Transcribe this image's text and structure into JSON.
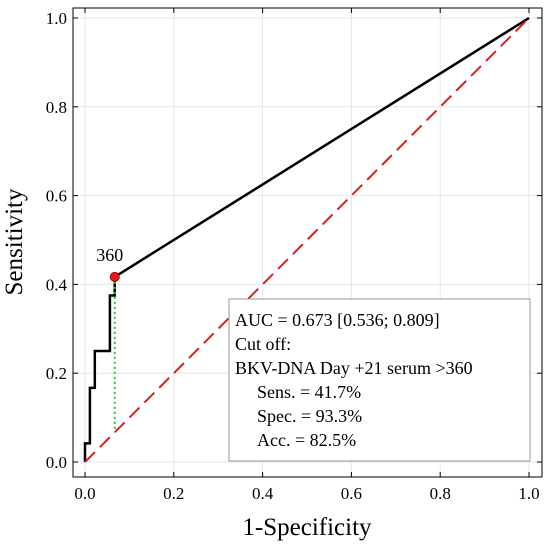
{
  "chart_data": {
    "type": "line",
    "title": "",
    "xlabel": "1-Specificity",
    "ylabel": "Sensitivity",
    "xlim": [
      0.0,
      1.0
    ],
    "ylim": [
      0.0,
      1.0
    ],
    "xticks": [
      0.0,
      0.2,
      0.4,
      0.6,
      0.8,
      1.0
    ],
    "yticks": [
      0.0,
      0.2,
      0.4,
      0.6,
      0.8,
      1.0
    ],
    "xtick_labels": [
      "0.0",
      "0.2",
      "0.4",
      "0.6",
      "0.8",
      "1.0"
    ],
    "ytick_labels": [
      "0.0",
      "0.2",
      "0.4",
      "0.6",
      "0.8",
      "1.0"
    ],
    "grid": true,
    "series": [
      {
        "type": "roc-step",
        "color": "#000000",
        "points": [
          [
            0.0,
            0.0
          ],
          [
            0.0,
            0.042
          ],
          [
            0.011,
            0.042
          ],
          [
            0.011,
            0.167
          ],
          [
            0.022,
            0.167
          ],
          [
            0.022,
            0.25
          ],
          [
            0.056,
            0.25
          ],
          [
            0.056,
            0.375
          ],
          [
            0.067,
            0.375
          ],
          [
            0.067,
            0.417
          ],
          [
            1.0,
            1.0
          ]
        ]
      },
      {
        "type": "reference-diagonal",
        "color": "#e31a1c",
        "points": [
          [
            0.0,
            0.0
          ],
          [
            1.0,
            1.0
          ]
        ]
      }
    ],
    "cutoff_point": {
      "x": 0.067,
      "y": 0.417,
      "label": "360",
      "color": "#e31a1c",
      "youden_line_color": "#22cc22"
    },
    "annotation_box": {
      "placement": "bottom-right",
      "lines": [
        "AUC = 0.673 [0.536; 0.809]",
        "Cut off:",
        "BKV-DNA Day +21 serum >360",
        "Sens. = 41.7%",
        "Spec. = 93.3%",
        "Acc. = 82.5%"
      ]
    }
  }
}
